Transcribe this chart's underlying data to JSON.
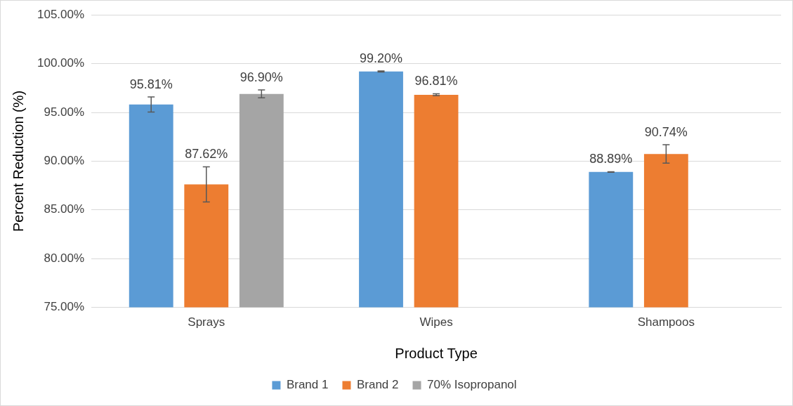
{
  "chart_data": {
    "type": "bar",
    "xlabel": "Product Type",
    "ylabel": "Percent Reduction (%)",
    "categories": [
      "Sprays",
      "Wipes",
      "Shampoos"
    ],
    "series": [
      {
        "name": "Brand 1",
        "color": "#5b9bd5",
        "values": [
          95.81,
          99.2,
          88.89
        ],
        "value_labels": [
          "95.81%",
          "99.20%",
          "88.89%"
        ],
        "errors": [
          0.78,
          0.05,
          0.03
        ]
      },
      {
        "name": "Brand 2",
        "color": "#ed7d31",
        "values": [
          87.62,
          96.81,
          90.74
        ],
        "value_labels": [
          "87.62%",
          "96.81%",
          "90.74%"
        ],
        "errors": [
          1.8,
          0.1,
          0.95
        ]
      },
      {
        "name": "70% Isopropanol",
        "color": "#a5a5a5",
        "values": [
          96.9,
          null,
          null
        ],
        "value_labels": [
          "96.90%",
          null,
          null
        ],
        "errors": [
          0.4,
          null,
          null
        ]
      }
    ],
    "ylim": [
      75,
      105
    ],
    "yticks": [
      {
        "value": 75,
        "label": "75.00%"
      },
      {
        "value": 80,
        "label": "80.00%"
      },
      {
        "value": 85,
        "label": "85.00%"
      },
      {
        "value": 90,
        "label": "90.00%"
      },
      {
        "value": 95,
        "label": "95.00%"
      },
      {
        "value": 100,
        "label": "100.00%"
      },
      {
        "value": 105,
        "label": "105.00%"
      }
    ],
    "grid": "y",
    "legend": "bottom"
  }
}
